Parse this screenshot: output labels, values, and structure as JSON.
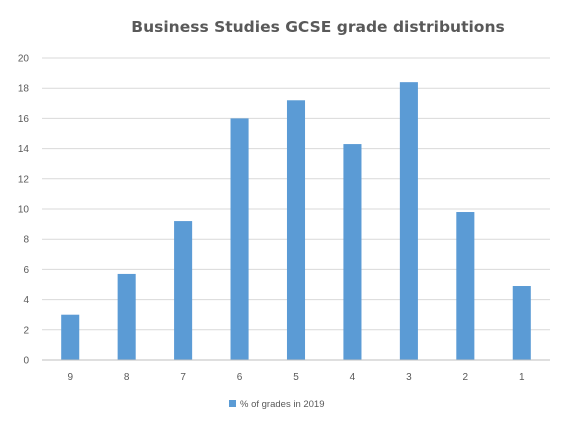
{
  "chart_data": {
    "type": "bar",
    "title": "Business Studies GCSE grade distributions",
    "xlabel": "",
    "ylabel": "",
    "categories": [
      "9",
      "8",
      "7",
      "6",
      "5",
      "4",
      "3",
      "2",
      "1"
    ],
    "series": [
      {
        "name": "% of grades in 2019",
        "values": [
          3.0,
          5.7,
          9.2,
          16.0,
          17.2,
          14.3,
          18.4,
          9.8,
          4.9
        ],
        "color": "#5B9BD5"
      }
    ],
    "ylim": [
      0,
      20
    ],
    "yticks": [
      "0",
      "2",
      "4",
      "6",
      "8",
      "10",
      "12",
      "14",
      "16",
      "18",
      "20"
    ],
    "grid": true,
    "legend_position": "bottom",
    "colors": {
      "bar": "#5B9BD5",
      "grid": "#D9D9D9",
      "text": "#595959",
      "axis": "#BFBFBF"
    }
  }
}
